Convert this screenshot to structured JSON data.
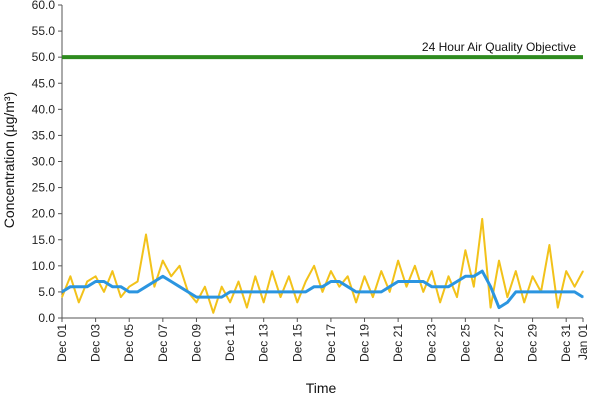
{
  "chart_data": {
    "type": "line",
    "title": "",
    "xlabel": "Time",
    "ylabel": "Concentration (µg/m³)",
    "ylim": [
      0,
      60
    ],
    "grid": false,
    "legend": "none",
    "y_ticks": [
      "0.0",
      "5.0",
      "10.0",
      "15.0",
      "20.0",
      "25.0",
      "30.0",
      "35.0",
      "40.0",
      "45.0",
      "50.0",
      "55.0",
      "60.0"
    ],
    "x_ticks": [
      "Dec 01",
      "Dec 03",
      "Dec 05",
      "Dec 07",
      "Dec 09",
      "Dec 11",
      "Dec 13",
      "Dec 15",
      "Dec 17",
      "Dec 19",
      "Dec 21",
      "Dec 23",
      "Dec 25",
      "Dec 27",
      "Dec 29",
      "Dec 31",
      "Jan 01"
    ],
    "objective": {
      "label": "24 Hour Air Quality Objective",
      "value": 50.0,
      "color": "#2e8b1f"
    },
    "series": [
      {
        "color": "#f2c21a",
        "x": [
          "Dec 01",
          "Dec 01 12:00",
          "Dec 02",
          "Dec 02 12:00",
          "Dec 03",
          "Dec 03 12:00",
          "Dec 04",
          "Dec 04 12:00",
          "Dec 05",
          "Dec 05 12:00",
          "Dec 06",
          "Dec 06 12:00",
          "Dec 07",
          "Dec 07 12:00",
          "Dec 08",
          "Dec 08 12:00",
          "Dec 09",
          "Dec 09 12:00",
          "Dec 10",
          "Dec 10 12:00",
          "Dec 11",
          "Dec 11 12:00",
          "Dec 12",
          "Dec 12 12:00",
          "Dec 13",
          "Dec 13 12:00",
          "Dec 14",
          "Dec 14 12:00",
          "Dec 15",
          "Dec 15 12:00",
          "Dec 16",
          "Dec 16 12:00",
          "Dec 17",
          "Dec 17 12:00",
          "Dec 18",
          "Dec 18 12:00",
          "Dec 19",
          "Dec 19 12:00",
          "Dec 20",
          "Dec 20 12:00",
          "Dec 21",
          "Dec 21 12:00",
          "Dec 22",
          "Dec 22 12:00",
          "Dec 23",
          "Dec 23 12:00",
          "Dec 24",
          "Dec 24 12:00",
          "Dec 25",
          "Dec 25 12:00",
          "Dec 26",
          "Dec 26 12:00",
          "Dec 27",
          "Dec 27 12:00",
          "Dec 28",
          "Dec 28 12:00",
          "Dec 29",
          "Dec 29 12:00",
          "Dec 30",
          "Dec 30 12:00",
          "Dec 31",
          "Dec 31 12:00",
          "Jan 01"
        ],
        "values": [
          4,
          8,
          3,
          7,
          8,
          5,
          9,
          4,
          6,
          7,
          16,
          6,
          11,
          8,
          10,
          5,
          3,
          6,
          1,
          6,
          3,
          7,
          2,
          8,
          3,
          9,
          4,
          8,
          3,
          7,
          10,
          5,
          9,
          6,
          8,
          3,
          8,
          4,
          9,
          5,
          11,
          6,
          10,
          5,
          9,
          3,
          8,
          4,
          13,
          6,
          19,
          2,
          11,
          4,
          9,
          3,
          8,
          5,
          14,
          2,
          9,
          6,
          9
        ]
      },
      {
        "color": "#2b95e0",
        "x": [
          "Dec 01",
          "Dec 01 12:00",
          "Dec 02",
          "Dec 02 12:00",
          "Dec 03",
          "Dec 03 12:00",
          "Dec 04",
          "Dec 04 12:00",
          "Dec 05",
          "Dec 05 12:00",
          "Dec 06",
          "Dec 06 12:00",
          "Dec 07",
          "Dec 07 12:00",
          "Dec 08",
          "Dec 08 12:00",
          "Dec 09",
          "Dec 09 12:00",
          "Dec 10",
          "Dec 10 12:00",
          "Dec 11",
          "Dec 11 12:00",
          "Dec 12",
          "Dec 12 12:00",
          "Dec 13",
          "Dec 13 12:00",
          "Dec 14",
          "Dec 14 12:00",
          "Dec 15",
          "Dec 15 12:00",
          "Dec 16",
          "Dec 16 12:00",
          "Dec 17",
          "Dec 17 12:00",
          "Dec 18",
          "Dec 18 12:00",
          "Dec 19",
          "Dec 19 12:00",
          "Dec 20",
          "Dec 20 12:00",
          "Dec 21",
          "Dec 21 12:00",
          "Dec 22",
          "Dec 22 12:00",
          "Dec 23",
          "Dec 23 12:00",
          "Dec 24",
          "Dec 24 12:00",
          "Dec 25",
          "Dec 25 12:00",
          "Dec 26",
          "Dec 26 12:00",
          "Dec 27",
          "Dec 27 12:00",
          "Dec 28",
          "Dec 28 12:00",
          "Dec 29",
          "Dec 29 12:00",
          "Dec 30",
          "Dec 30 12:00",
          "Dec 31",
          "Dec 31 12:00",
          "Jan 01"
        ],
        "values": [
          5,
          6,
          6,
          6,
          7,
          7,
          6,
          6,
          5,
          5,
          6,
          7,
          8,
          7,
          6,
          5,
          4,
          4,
          4,
          4,
          5,
          5,
          5,
          5,
          5,
          5,
          5,
          5,
          5,
          5,
          6,
          6,
          7,
          7,
          6,
          5,
          5,
          5,
          5,
          6,
          7,
          7,
          7,
          7,
          6,
          6,
          6,
          7,
          8,
          8,
          9,
          6,
          2,
          3,
          5,
          5,
          5,
          5,
          5,
          5,
          5,
          5,
          4
        ]
      }
    ]
  }
}
